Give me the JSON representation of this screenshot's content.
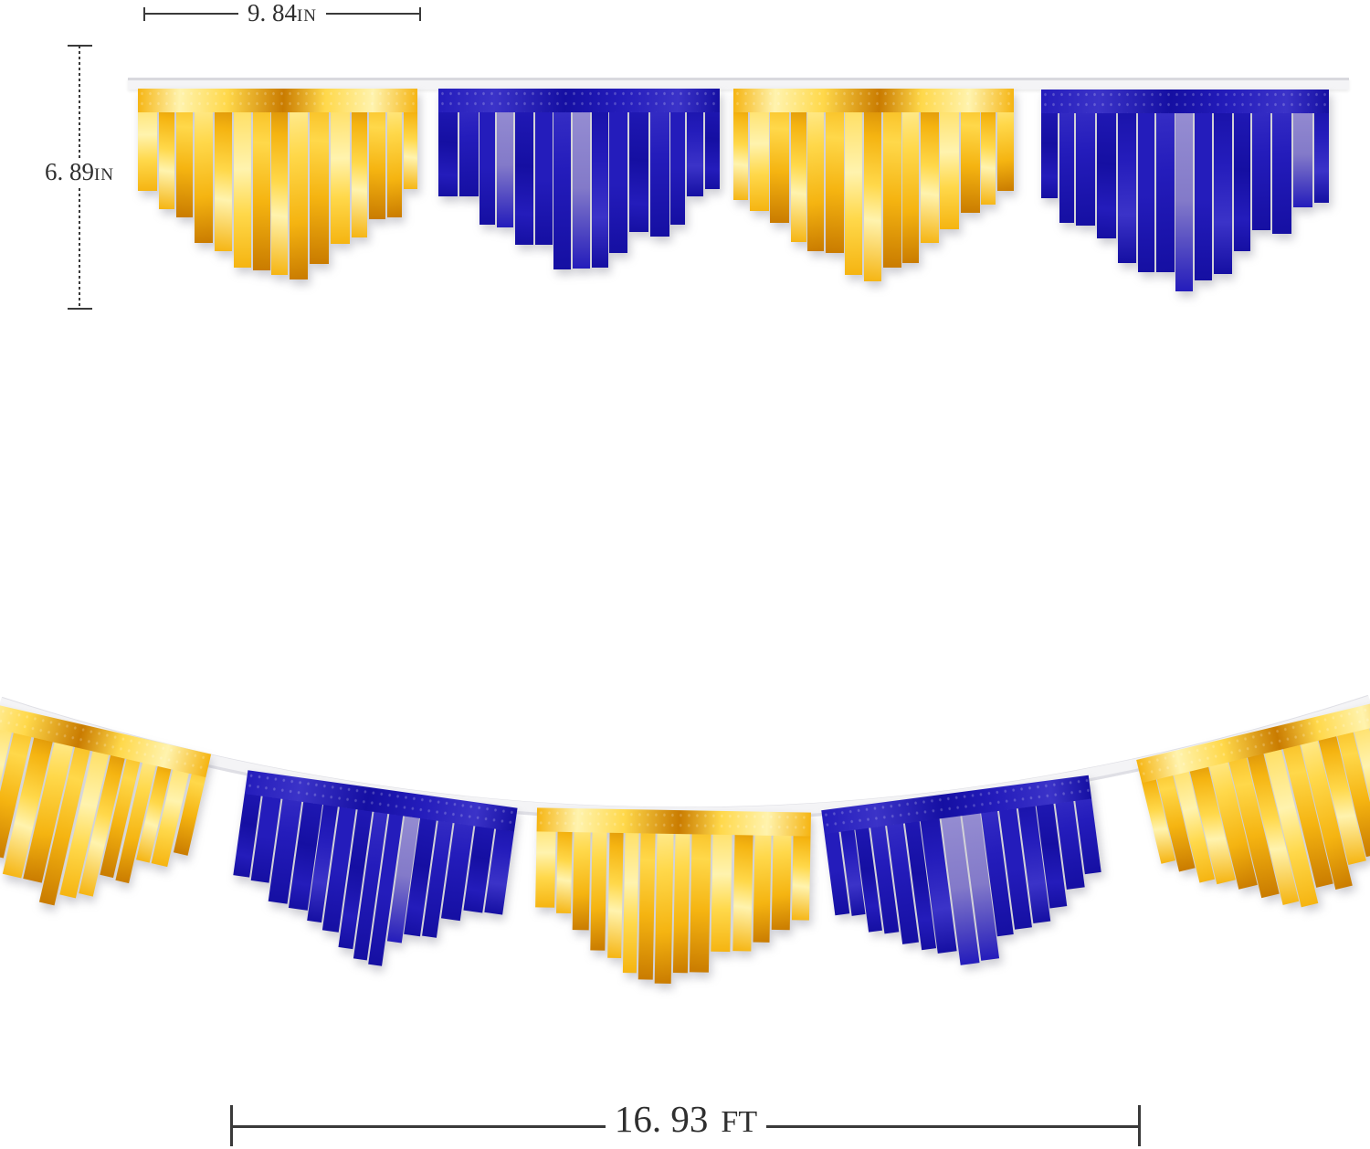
{
  "annotations": {
    "pennant_width": {
      "value": "9. 84",
      "unit": "IN"
    },
    "pennant_height": {
      "value": "6. 89",
      "unit": "IN"
    },
    "garland_length": {
      "value": "16. 93",
      "unit": "FT"
    }
  },
  "colors": {
    "gold_deep": "#c97b00",
    "gold_mid": "#f5b411",
    "gold_bright": "#ffd84a",
    "gold_pale": "#fff3ae",
    "blue_deep": "#150fa2",
    "blue_mid": "#241cbb",
    "blue_bright": "#3b33c8",
    "blue_light": "#9a92d4",
    "ribbon": "#f4f4f6",
    "ribbon_edge": "#d9d9de",
    "dimension_line": "#3a3a3a",
    "text": "#2f2f2f"
  },
  "banners": {
    "top": {
      "pennants": [
        {
          "color": "gold"
        },
        {
          "color": "blue"
        },
        {
          "color": "gold"
        },
        {
          "color": "blue"
        }
      ]
    },
    "bottom": {
      "pennants": [
        {
          "color": "gold"
        },
        {
          "color": "blue"
        },
        {
          "color": "gold"
        },
        {
          "color": "blue"
        },
        {
          "color": "gold"
        }
      ]
    }
  },
  "strips_per_pennant": 15
}
